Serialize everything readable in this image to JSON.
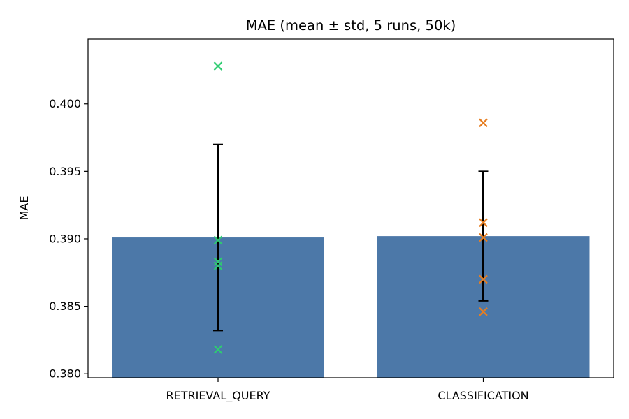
{
  "chart_data": {
    "type": "bar",
    "title": "MAE (mean ± std, 5 runs, 50k)",
    "xlabel": "",
    "ylabel": "MAE",
    "ylim": [
      0.3797,
      0.4048
    ],
    "yticks": [
      0.38,
      0.385,
      0.39,
      0.395,
      0.4
    ],
    "ytick_labels": [
      "0.380",
      "0.385",
      "0.390",
      "0.395",
      "0.400"
    ],
    "categories": [
      "RETRIEVAL_QUERY",
      "CLASSIFICATION"
    ],
    "values": [
      0.3901,
      0.3902
    ],
    "std": [
      0.0069,
      0.0048
    ],
    "runs": [
      [
        0.4028,
        0.3899,
        0.3883,
        0.388,
        0.3818
      ],
      [
        0.3986,
        0.3912,
        0.3901,
        0.387,
        0.3846
      ]
    ],
    "bar_color": "#4c78a8",
    "run_marker_colors": [
      "#2ecc71",
      "#e67e22"
    ],
    "errorbar_color": "#000000",
    "grid": false,
    "legend": "none"
  }
}
